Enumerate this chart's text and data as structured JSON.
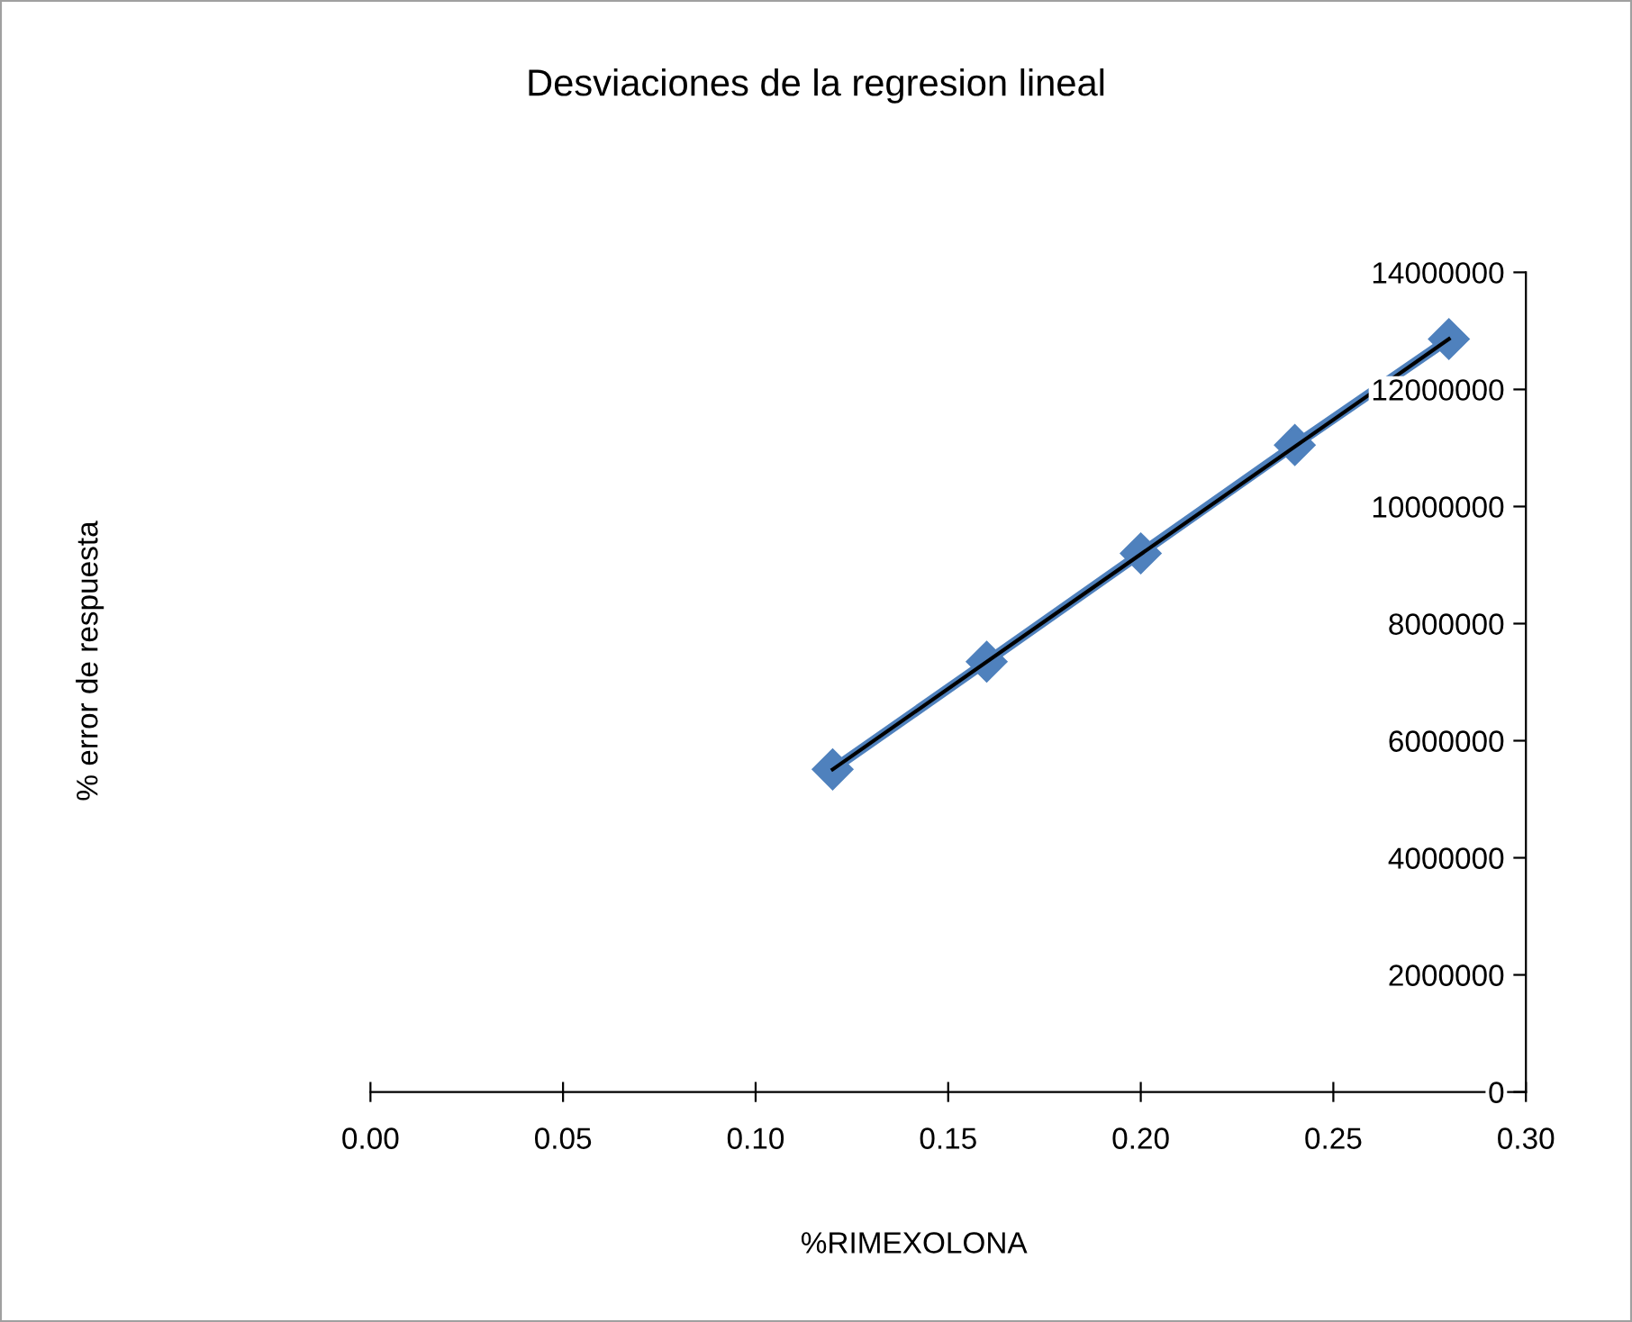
{
  "chart_data": {
    "type": "line",
    "title": "Desviaciones de la regresion lineal",
    "xlabel": "%RIMEXOLONA",
    "annotations": [
      "% error de respuesta"
    ],
    "series": [
      {
        "color": "#4f81bd",
        "marker": "diamond",
        "x": [
          0.12,
          0.16,
          0.2,
          0.24,
          0.28
        ],
        "values": [
          5510000,
          7350000,
          9200000,
          11050000,
          12860000
        ]
      },
      {
        "type": "line",
        "color": "#000000",
        "marker": "none",
        "x": [
          0.12,
          0.28
        ],
        "values": [
          5510000,
          12860000
        ]
      }
    ],
    "xlim": [
      0,
      0.3
    ],
    "ylim": [
      0,
      14000000
    ],
    "xticks": [
      {
        "value": 0,
        "label": "0.00"
      },
      {
        "value": 0.05,
        "label": "0.05"
      },
      {
        "value": 0.1,
        "label": "0.10"
      },
      {
        "value": 0.15,
        "label": "0.15"
      },
      {
        "value": 0.2,
        "label": "0.20"
      },
      {
        "value": 0.25,
        "label": "0.25"
      },
      {
        "value": 0.3,
        "label": "0.30"
      }
    ],
    "yticks": [
      0,
      2000000,
      4000000,
      6000000,
      8000000,
      10000000,
      12000000,
      14000000
    ],
    "grid": false
  }
}
